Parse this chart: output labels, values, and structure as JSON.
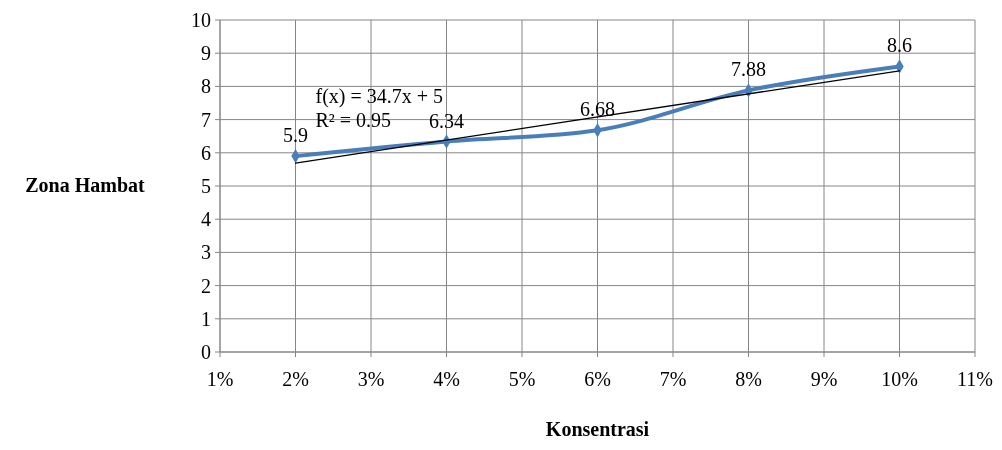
{
  "chart_data": {
    "type": "line",
    "xlabel": "Konsentrasi",
    "ylabel": "Zona Hambat",
    "x": [
      0.02,
      0.04,
      0.06,
      0.08,
      0.1
    ],
    "series": [
      {
        "color": "#4a7ebb",
        "values": [
          5.9,
          6.34,
          6.68,
          7.88,
          8.6
        ],
        "value_labels": [
          "5.9",
          "6.34",
          "6.68",
          "7.88",
          "8.6"
        ],
        "marker": "diamond"
      },
      {
        "type": "line",
        "color": "#000000",
        "x": [
          0.02,
          0.1
        ],
        "values": [
          5.69,
          8.47
        ],
        "marker": "none"
      }
    ],
    "annotations": [
      "f(x) = 34.7x + 5",
      "R² = 0.95"
    ],
    "xlim": [
      0.01,
      0.11
    ],
    "xticks": [
      {
        "value": 0.01,
        "label": "1%"
      },
      {
        "value": 0.02,
        "label": "2%"
      },
      {
        "value": 0.03,
        "label": "3%"
      },
      {
        "value": 0.04,
        "label": "4%"
      },
      {
        "value": 0.05,
        "label": "5%"
      },
      {
        "value": 0.06,
        "label": "6%"
      },
      {
        "value": 0.07,
        "label": "7%"
      },
      {
        "value": 0.08,
        "label": "8%"
      },
      {
        "value": 0.09,
        "label": "9%"
      },
      {
        "value": 0.1,
        "label": "10%"
      },
      {
        "value": 0.11,
        "label": "11%"
      }
    ],
    "ylim": [
      0,
      10
    ],
    "yticks": [
      0,
      1,
      2,
      3,
      4,
      5,
      6,
      7,
      8,
      9,
      10
    ],
    "grid": true
  }
}
